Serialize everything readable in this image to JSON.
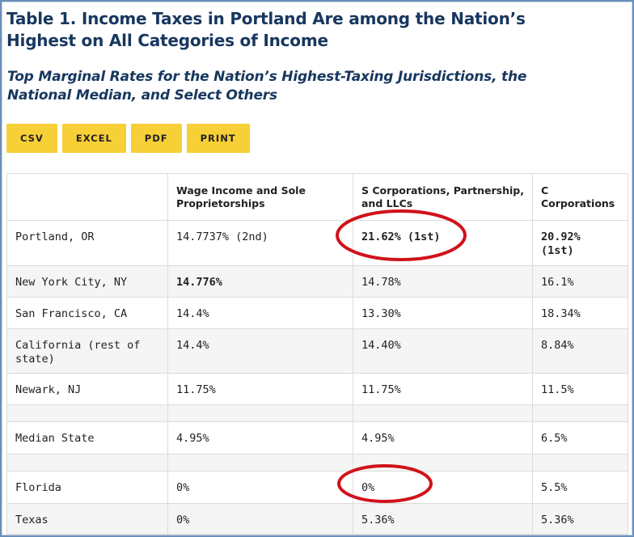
{
  "title": "Table 1. Income Taxes in Portland Are among the Nation’s Highest on All Categories of Income",
  "subtitle": "Top Marginal Rates for the Nation’s Highest-Taxing Jurisdictions, the National Median, and Select Others",
  "buttons": {
    "csv": "CSV",
    "excel": "EXCEL",
    "pdf": "PDF",
    "print": "PRINT"
  },
  "table": {
    "headers": [
      "",
      "Wage Income and Sole Proprietorships",
      "S Corporations, Partnership, and LLCs",
      "C Corporations"
    ],
    "rows": [
      [
        "Portland, OR",
        "14.7737% (2nd)",
        "21.62% (1st)",
        "20.92% (1st)"
      ],
      [
        "New York City, NY",
        "14.776%",
        "14.78%",
        "16.1%"
      ],
      [
        "San Francisco, CA",
        "14.4%",
        "13.30%",
        "18.34%"
      ],
      [
        "California (rest of state)",
        "14.4%",
        "14.40%",
        "8.84%"
      ],
      [
        "Newark, NJ",
        "11.75%",
        "11.75%",
        "11.5%"
      ],
      [
        "Median State",
        "4.95%",
        "4.95%",
        "6.5%"
      ],
      [
        "Florida",
        "0%",
        "0%",
        "5.5%"
      ],
      [
        "Texas",
        "0%",
        "5.36%",
        "5.36%"
      ]
    ]
  },
  "colors": {
    "title": "#17375e",
    "button_bg": "#f7cf37",
    "highlight_circle": "#d0121b",
    "frame": "#6a8fb8"
  }
}
